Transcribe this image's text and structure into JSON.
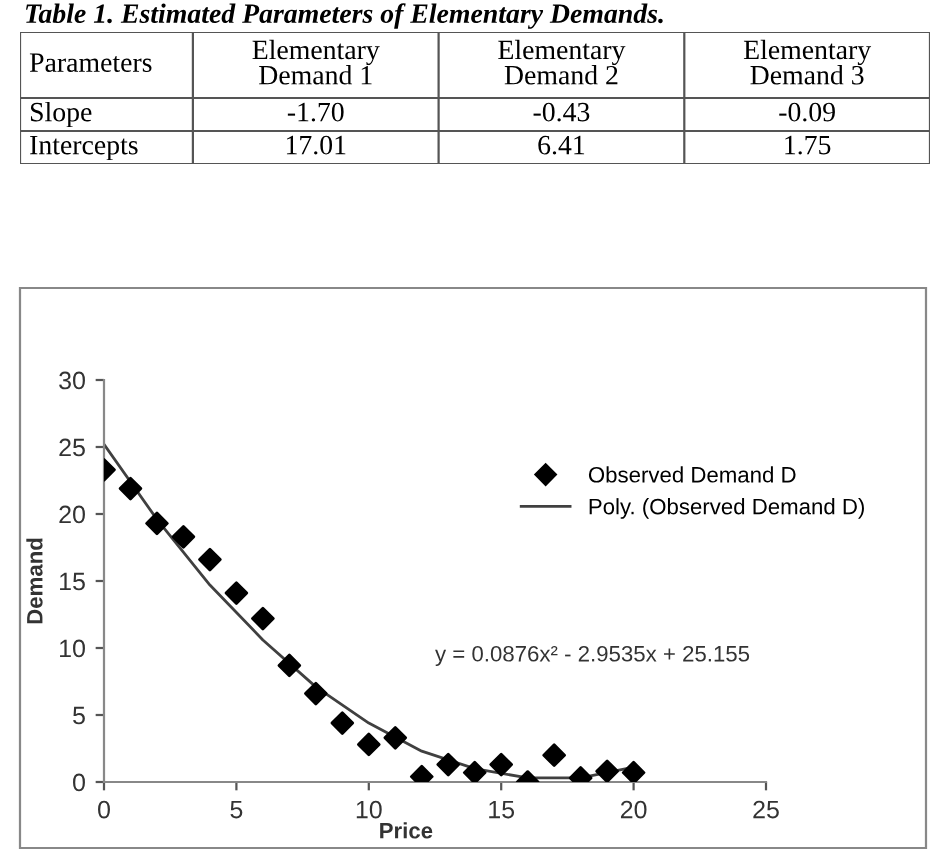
{
  "chart_data": [
    {
      "type": "other",
      "title": "Table 1. Estimated Parameters of Elementary Demands.",
      "annotations": [
        "Parameters",
        "Elementary\nDemand 1",
        "Elementary\nDemand 2",
        "Elementary\nDemand 3",
        "Slope",
        "-1.70",
        "-0.43",
        "-0.09",
        "Intercepts",
        "17.01",
        "6.41",
        "1.75"
      ]
    },
    {
      "type": "scatter",
      "xlabel": "Price",
      "ylabel": "Demand",
      "xlim": [
        0,
        25
      ],
      "ylim": [
        0,
        30
      ],
      "xticks": [
        0,
        5,
        10,
        15,
        20,
        25
      ],
      "yticks": [
        0,
        5,
        10,
        15,
        20,
        25,
        30
      ],
      "grid": false,
      "legend": "right",
      "annotations": [
        "y = 0.0876x² - 2.9535x + 25.155"
      ],
      "series": [
        {
          "name": "Observed Demand D",
          "type": "scatter",
          "marker": "diamond",
          "color": "#000000",
          "x": [
            0,
            1,
            2,
            3,
            4,
            5,
            6,
            7,
            8,
            9,
            10,
            11,
            12,
            13,
            14,
            15,
            16,
            17,
            18,
            19,
            20
          ],
          "values": [
            23.3,
            21.9,
            19.3,
            18.3,
            16.6,
            14.1,
            12.2,
            8.7,
            6.6,
            4.4,
            2.8,
            3.3,
            0.4,
            1.3,
            0.7,
            1.3,
            0.0,
            2.0,
            0.3,
            0.8,
            0.7
          ]
        },
        {
          "name": "Poly. (Observed Demand D)",
          "type": "line",
          "line_style": "solid",
          "marker": "none",
          "color": "#404040",
          "x": [
            0,
            2,
            4,
            6,
            8,
            10,
            12,
            14,
            16,
            18,
            20
          ],
          "values": [
            25.2,
            19.6,
            14.7,
            10.6,
            7.1,
            4.4,
            2.3,
            1.0,
            0.3,
            0.3,
            1.1
          ]
        }
      ]
    }
  ]
}
